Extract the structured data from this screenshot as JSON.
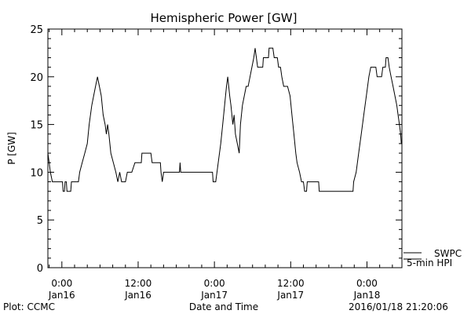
{
  "chart_data": {
    "type": "line",
    "title": "Hemispheric Power [GW]",
    "ylabel": "P [GW]",
    "xlabel": "Date and Time",
    "ylim": [
      0,
      25
    ],
    "y_ticks": [
      0,
      5,
      10,
      15,
      20,
      25
    ],
    "xlim_hours": [
      -2.2,
      53.5
    ],
    "x_ticks": [
      {
        "hour": 0,
        "time": "0:00",
        "date": "Jan16"
      },
      {
        "hour": 12,
        "time": "12:00",
        "date": "Jan16"
      },
      {
        "hour": 24,
        "time": "0:00",
        "date": "Jan17"
      },
      {
        "hour": 36,
        "time": "12:00",
        "date": "Jan17"
      },
      {
        "hour": 48,
        "time": "0:00",
        "date": "Jan18"
      },
      {
        "hour": 60,
        "time": "12:00",
        "date": "Jan18"
      }
    ],
    "legend": [
      {
        "label": "SWPC"
      },
      {
        "label": "5-min HPI"
      }
    ],
    "series": [
      {
        "name": "HPI",
        "points": [
          [
            -2.2,
            12
          ],
          [
            -2.0,
            11
          ],
          [
            -1.8,
            10
          ],
          [
            -1.5,
            9
          ],
          [
            -0.5,
            9
          ],
          [
            0.1,
            9
          ],
          [
            0.2,
            8
          ],
          [
            0.4,
            8
          ],
          [
            0.5,
            9
          ],
          [
            0.7,
            9
          ],
          [
            0.8,
            8
          ],
          [
            1.4,
            8
          ],
          [
            1.5,
            9
          ],
          [
            2.6,
            9
          ],
          [
            2.8,
            10
          ],
          [
            3.2,
            11
          ],
          [
            3.6,
            12
          ],
          [
            4.0,
            13
          ],
          [
            4.3,
            15
          ],
          [
            4.7,
            17
          ],
          [
            5.0,
            18
          ],
          [
            5.3,
            19
          ],
          [
            5.6,
            20
          ],
          [
            5.9,
            19
          ],
          [
            6.2,
            18
          ],
          [
            6.5,
            16
          ],
          [
            6.8,
            15
          ],
          [
            7.0,
            14
          ],
          [
            7.2,
            15
          ],
          [
            7.4,
            14
          ],
          [
            7.7,
            12
          ],
          [
            8.1,
            11
          ],
          [
            8.5,
            10
          ],
          [
            8.8,
            9
          ],
          [
            9.1,
            10
          ],
          [
            9.4,
            9
          ],
          [
            10.0,
            9
          ],
          [
            10.3,
            10
          ],
          [
            11.0,
            10
          ],
          [
            11.5,
            11
          ],
          [
            12.5,
            11
          ],
          [
            12.6,
            12
          ],
          [
            14.0,
            12
          ],
          [
            14.2,
            11
          ],
          [
            15.5,
            11
          ],
          [
            15.6,
            10
          ],
          [
            15.8,
            9
          ],
          [
            16.0,
            10
          ],
          [
            18.5,
            10
          ],
          [
            18.6,
            11
          ],
          [
            18.7,
            10
          ],
          [
            23.7,
            10
          ],
          [
            23.8,
            9
          ],
          [
            24.2,
            9
          ],
          [
            24.4,
            10
          ],
          [
            24.6,
            11
          ],
          [
            25.0,
            13
          ],
          [
            25.3,
            15
          ],
          [
            25.6,
            17
          ],
          [
            25.9,
            19
          ],
          [
            26.1,
            20
          ],
          [
            26.4,
            18
          ],
          [
            26.6,
            17
          ],
          [
            26.9,
            15
          ],
          [
            27.1,
            16
          ],
          [
            27.3,
            14
          ],
          [
            27.6,
            13
          ],
          [
            27.9,
            12
          ],
          [
            28.1,
            15
          ],
          [
            28.4,
            17
          ],
          [
            28.7,
            18
          ],
          [
            29.0,
            19
          ],
          [
            29.3,
            19
          ],
          [
            29.6,
            20
          ],
          [
            29.9,
            21
          ],
          [
            30.2,
            22
          ],
          [
            30.4,
            23
          ],
          [
            30.6,
            22
          ],
          [
            30.8,
            21
          ],
          [
            31.6,
            21
          ],
          [
            31.7,
            22
          ],
          [
            32.5,
            22
          ],
          [
            32.6,
            23
          ],
          [
            33.2,
            23
          ],
          [
            33.4,
            22
          ],
          [
            33.9,
            22
          ],
          [
            34.1,
            21
          ],
          [
            34.4,
            21
          ],
          [
            34.6,
            20
          ],
          [
            34.9,
            19
          ],
          [
            35.5,
            19
          ],
          [
            35.9,
            18
          ],
          [
            36.2,
            16
          ],
          [
            36.5,
            14
          ],
          [
            36.8,
            12
          ],
          [
            37.0,
            11
          ],
          [
            37.4,
            10
          ],
          [
            37.7,
            9
          ],
          [
            38.0,
            9
          ],
          [
            38.2,
            8
          ],
          [
            38.5,
            8
          ],
          [
            38.6,
            9
          ],
          [
            40.4,
            9
          ],
          [
            40.5,
            8
          ],
          [
            45.8,
            8
          ],
          [
            45.9,
            9
          ],
          [
            46.3,
            10
          ],
          [
            46.7,
            12
          ],
          [
            47.1,
            14
          ],
          [
            47.5,
            16
          ],
          [
            47.9,
            18
          ],
          [
            48.3,
            20
          ],
          [
            48.6,
            21
          ],
          [
            49.4,
            21
          ],
          [
            49.6,
            20
          ],
          [
            50.3,
            20
          ],
          [
            50.5,
            21
          ],
          [
            50.9,
            21
          ],
          [
            51.0,
            22
          ],
          [
            51.3,
            22
          ],
          [
            51.5,
            21
          ],
          [
            51.8,
            20
          ],
          [
            52.1,
            19
          ],
          [
            52.4,
            18
          ],
          [
            52.7,
            17
          ],
          [
            52.9,
            16
          ],
          [
            53.1,
            15
          ],
          [
            53.3,
            14
          ],
          [
            53.4,
            13
          ],
          [
            53.5,
            13
          ]
        ]
      }
    ]
  },
  "footer": {
    "left": "Plot: CCMC",
    "right": "2016/01/18 21:20:06"
  }
}
